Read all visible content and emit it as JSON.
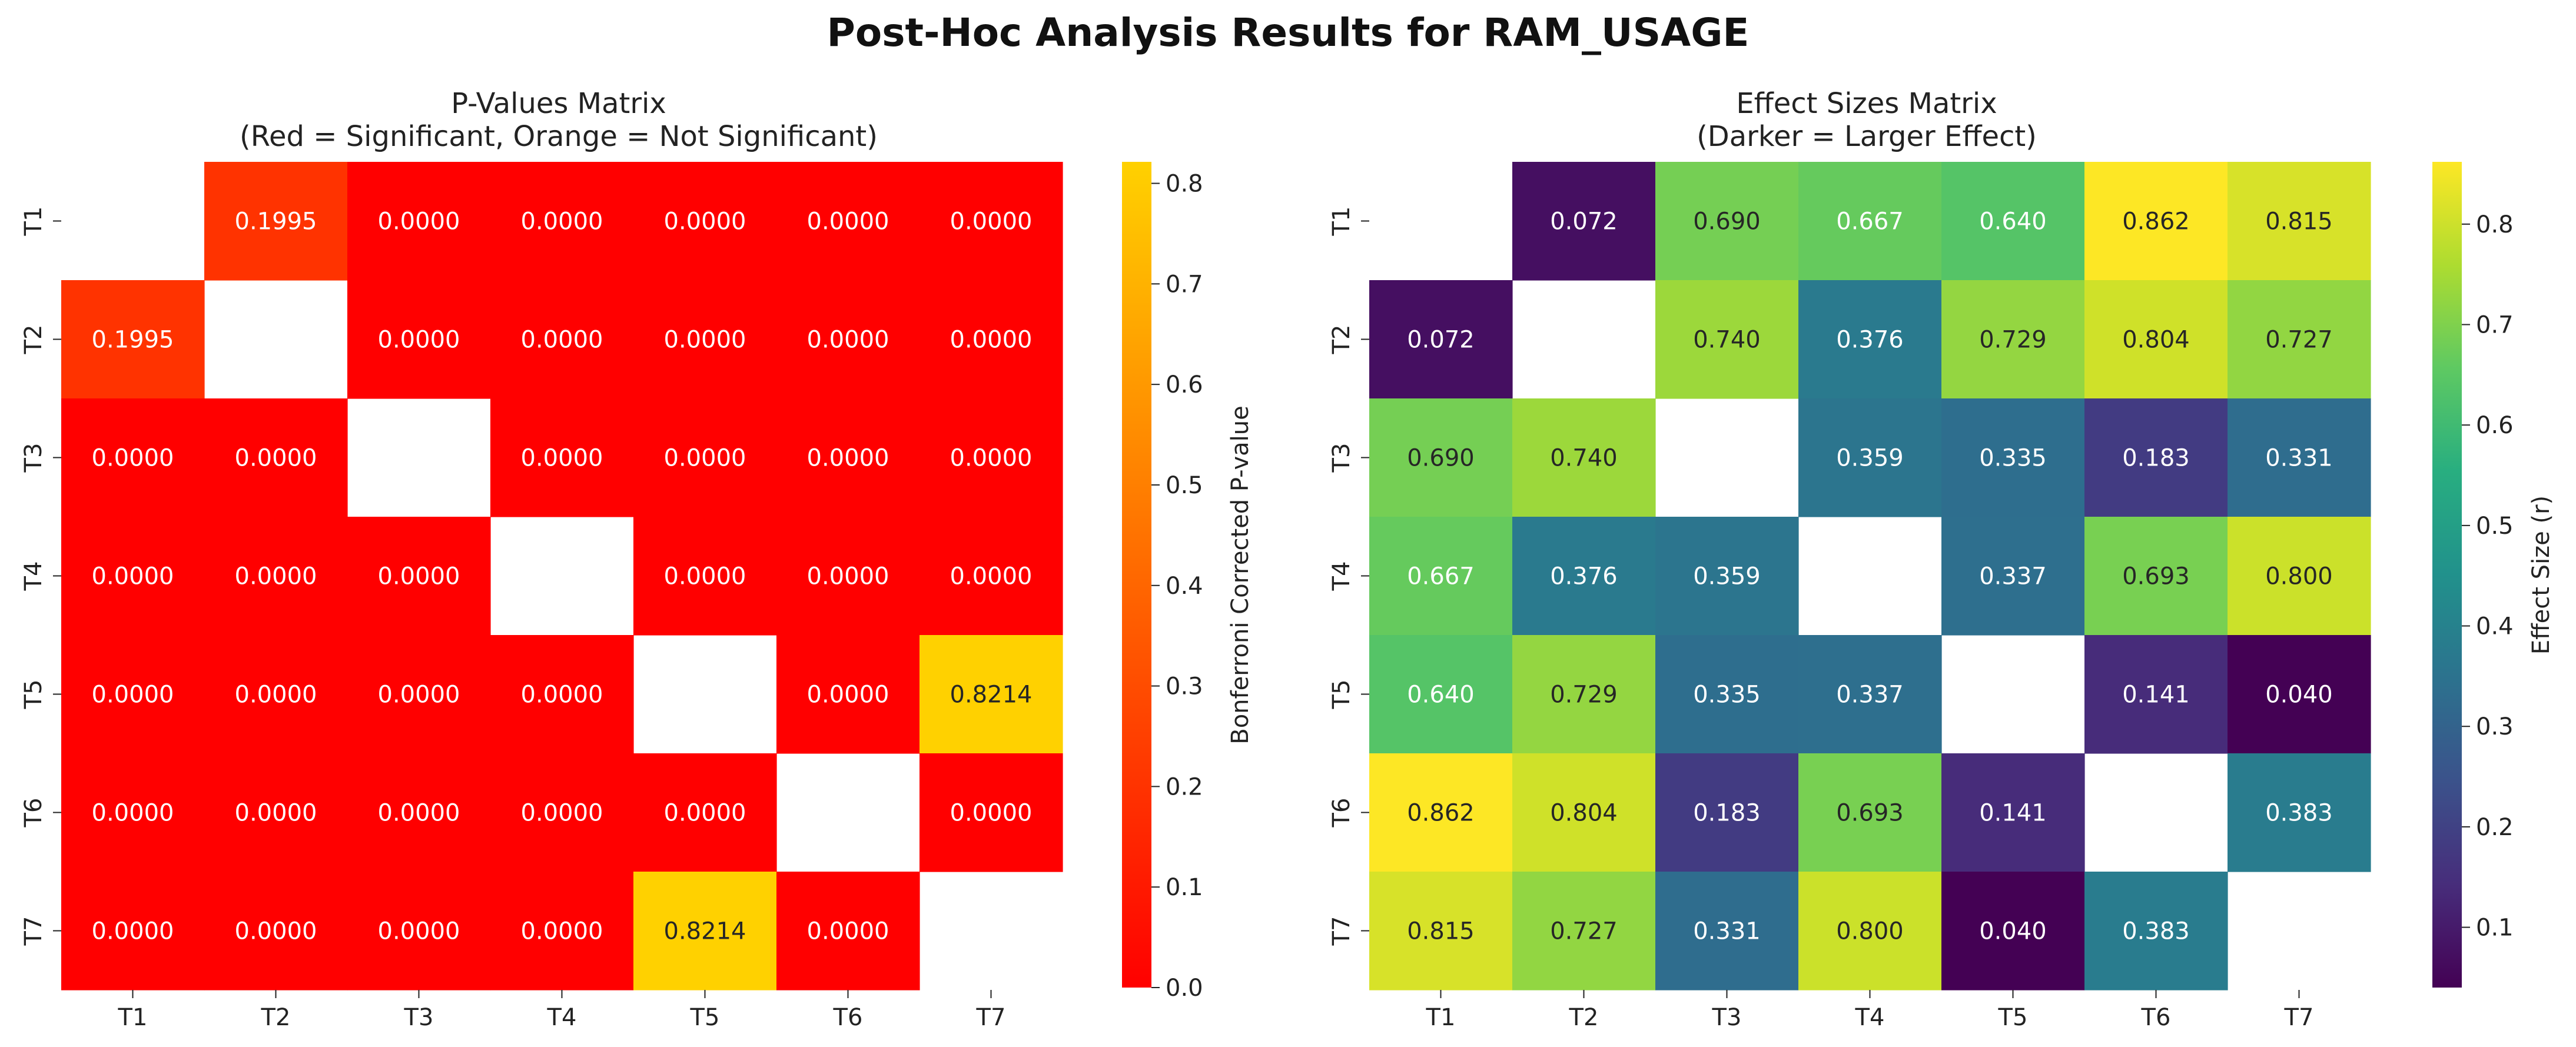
{
  "figure": {
    "suptitle": "Post-Hoc Analysis Results for RAM_USAGE"
  },
  "chart_data": [
    {
      "type": "heatmap",
      "title_line1": "P-Values Matrix",
      "title_line2": "(Red = Significant, Orange = Not Significant)",
      "row_labels": [
        "T1",
        "T2",
        "T3",
        "T4",
        "T5",
        "T6",
        "T7"
      ],
      "col_labels": [
        "T1",
        "T2",
        "T3",
        "T4",
        "T5",
        "T6",
        "T7"
      ],
      "values": [
        [
          null,
          0.1995,
          0.0,
          0.0,
          0.0,
          0.0,
          0.0
        ],
        [
          0.1995,
          null,
          0.0,
          0.0,
          0.0,
          0.0,
          0.0
        ],
        [
          0.0,
          0.0,
          null,
          0.0,
          0.0,
          0.0,
          0.0
        ],
        [
          0.0,
          0.0,
          0.0,
          null,
          0.0,
          0.0,
          0.0
        ],
        [
          0.0,
          0.0,
          0.0,
          0.0,
          null,
          0.0,
          0.8214
        ],
        [
          0.0,
          0.0,
          0.0,
          0.0,
          0.0,
          null,
          0.0
        ],
        [
          0.0,
          0.0,
          0.0,
          0.0,
          0.8214,
          0.0,
          null
        ]
      ],
      "annotations": [
        [
          "",
          "0.1995",
          "0.0000",
          "0.0000",
          "0.0000",
          "0.0000",
          "0.0000"
        ],
        [
          "0.1995",
          "",
          "0.0000",
          "0.0000",
          "0.0000",
          "0.0000",
          "0.0000"
        ],
        [
          "0.0000",
          "0.0000",
          "",
          "0.0000",
          "0.0000",
          "0.0000",
          "0.0000"
        ],
        [
          "0.0000",
          "0.0000",
          "0.0000",
          "",
          "0.0000",
          "0.0000",
          "0.0000"
        ],
        [
          "0.0000",
          "0.0000",
          "0.0000",
          "0.0000",
          "",
          "0.0000",
          "0.8214"
        ],
        [
          "0.0000",
          "0.0000",
          "0.0000",
          "0.0000",
          "0.0000",
          "",
          "0.0000"
        ],
        [
          "0.0000",
          "0.0000",
          "0.0000",
          "0.0000",
          "0.8214",
          "0.0000",
          ""
        ]
      ],
      "colormap": "autumn",
      "colorbar": {
        "label": "Bonferroni Corrected P-value",
        "min": 0.0,
        "max": 0.8214,
        "ticks": [
          "0.0",
          "0.1",
          "0.2",
          "0.3",
          "0.4",
          "0.5",
          "0.6",
          "0.7",
          "0.8"
        ]
      }
    },
    {
      "type": "heatmap",
      "title_line1": "Effect Sizes Matrix",
      "title_line2": "(Darker = Larger Effect)",
      "row_labels": [
        "T1",
        "T2",
        "T3",
        "T4",
        "T5",
        "T6",
        "T7"
      ],
      "col_labels": [
        "T1",
        "T2",
        "T3",
        "T4",
        "T5",
        "T6",
        "T7"
      ],
      "values": [
        [
          null,
          0.072,
          0.69,
          0.667,
          0.64,
          0.862,
          0.815
        ],
        [
          0.072,
          null,
          0.74,
          0.376,
          0.729,
          0.804,
          0.727
        ],
        [
          0.69,
          0.74,
          null,
          0.359,
          0.335,
          0.183,
          0.331
        ],
        [
          0.667,
          0.376,
          0.359,
          null,
          0.337,
          0.693,
          0.8
        ],
        [
          0.64,
          0.729,
          0.335,
          0.337,
          null,
          0.141,
          0.04
        ],
        [
          0.862,
          0.804,
          0.183,
          0.693,
          0.141,
          null,
          0.383
        ],
        [
          0.815,
          0.727,
          0.331,
          0.8,
          0.04,
          0.383,
          null
        ]
      ],
      "annotations": [
        [
          "",
          "0.072",
          "0.690",
          "0.667",
          "0.640",
          "0.862",
          "0.815"
        ],
        [
          "0.072",
          "",
          "0.740",
          "0.376",
          "0.729",
          "0.804",
          "0.727"
        ],
        [
          "0.690",
          "0.740",
          "",
          "0.359",
          "0.335",
          "0.183",
          "0.331"
        ],
        [
          "0.667",
          "0.376",
          "0.359",
          "",
          "0.337",
          "0.693",
          "0.800"
        ],
        [
          "0.640",
          "0.729",
          "0.335",
          "0.337",
          "",
          "0.141",
          "0.040"
        ],
        [
          "0.862",
          "0.804",
          "0.183",
          "0.693",
          "0.141",
          "",
          "0.383"
        ],
        [
          "0.815",
          "0.727",
          "0.331",
          "0.800",
          "0.040",
          "0.383",
          ""
        ]
      ],
      "colormap": "viridis",
      "colorbar": {
        "label": "Effect Size (r)",
        "min": 0.04,
        "max": 0.862,
        "ticks": [
          "0.1",
          "0.2",
          "0.3",
          "0.4",
          "0.5",
          "0.6",
          "0.7",
          "0.8"
        ]
      }
    }
  ]
}
